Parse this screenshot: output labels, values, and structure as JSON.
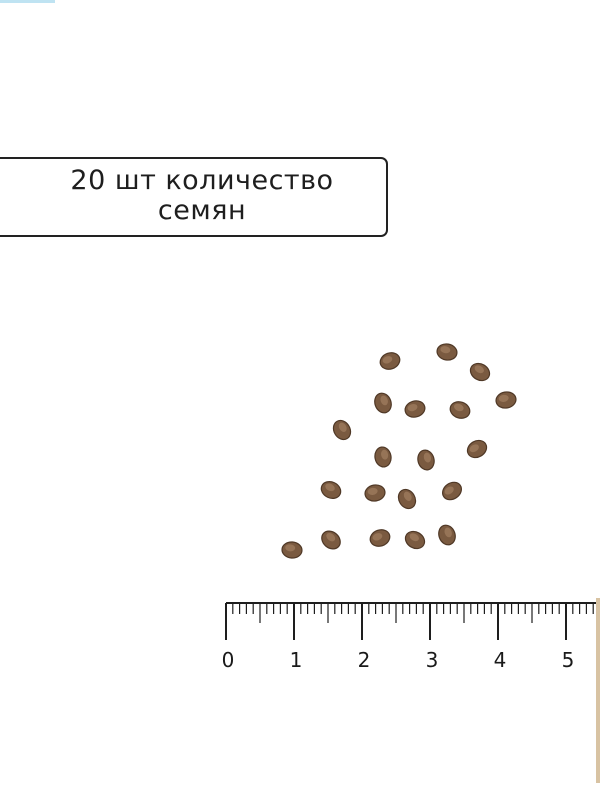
{
  "label": {
    "line1": "20 шт количество",
    "line2": "семян"
  },
  "ruler": {
    "labels": [
      "0",
      "1",
      "2",
      "3",
      "4",
      "5"
    ],
    "unit_divisions": 10
  },
  "seed_count": 20,
  "colors": {
    "seed": "#7a5a40",
    "seed_dark": "#4f3826",
    "ink": "#1e1e1e",
    "ruler_wood": "#d8c3a3"
  }
}
